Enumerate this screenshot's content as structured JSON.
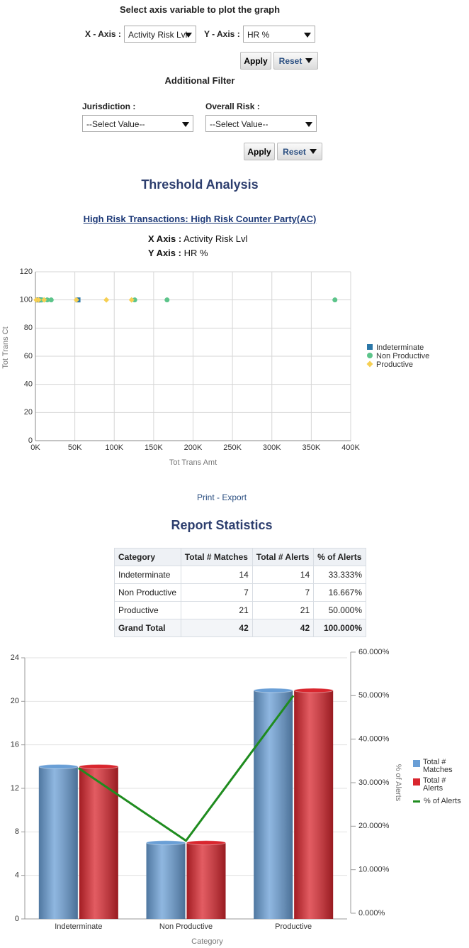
{
  "form": {
    "title": "Select axis variable to plot the graph",
    "x_axis_label": "X - Axis :",
    "x_axis_value": "Activity Risk Lvl",
    "y_axis_label": "Y - Axis :",
    "y_axis_value": "HR %",
    "apply": "Apply",
    "reset": "Reset",
    "filter_title": "Additional Filter",
    "jurisdiction_label": "Jurisdiction :",
    "jurisdiction_value": "--Select Value--",
    "overall_risk_label": "Overall Risk :",
    "overall_risk_value": "--Select Value--",
    "apply2": "Apply",
    "reset2": "Reset"
  },
  "section_title": "Threshold Analysis",
  "report_link": "High Risk Transactions: High Risk Counter Party(AC)",
  "axis_info": {
    "x_label": "X Axis :",
    "x_value": "Activity Risk Lvl",
    "y_label": "Y Axis :",
    "y_value": "HR %"
  },
  "links": [
    "Print",
    "- Export"
  ],
  "stats_title": "Report Statistics",
  "table": {
    "header": [
      "Category",
      "Total # Matches",
      "Total # Alerts",
      "% of Alerts"
    ],
    "rows": [
      [
        "Indeterminate",
        14,
        14,
        "33.333%"
      ],
      [
        "Non Productive",
        7,
        7,
        "16.667%"
      ],
      [
        "Productive",
        21,
        21,
        "50.000%"
      ],
      [
        "Grand Total",
        42,
        42,
        "100.000%"
      ]
    ]
  },
  "chart_data": [
    {
      "type": "scatter",
      "x_label": "Tot Trans Amt",
      "y_label": "Tot Trans Ct",
      "xlim": [
        0,
        400000
      ],
      "ylim": [
        0,
        120
      ],
      "xticks": [
        {
          "value": 0,
          "label": "0K"
        },
        {
          "value": 50000,
          "label": "50K"
        },
        {
          "value": 100000,
          "label": "100K"
        },
        {
          "value": 150000,
          "label": "150K"
        },
        {
          "value": 200000,
          "label": "200K"
        },
        {
          "value": 250000,
          "label": "250K"
        },
        {
          "value": 300000,
          "label": "300K"
        },
        {
          "value": 350000,
          "label": "350K"
        },
        {
          "value": 400000,
          "label": "400K"
        }
      ],
      "yticks": [
        0,
        20,
        40,
        60,
        80,
        100,
        120
      ],
      "grid": true,
      "series": [
        {
          "name": "Indeterminate",
          "color": "#2b77a8",
          "marker": "square",
          "x": [
            3000,
            6000,
            54000
          ],
          "values": [
            100,
            100,
            100
          ]
        },
        {
          "name": "Non Productive",
          "color": "#5cc48a",
          "marker": "circle",
          "x": [
            8000,
            15000,
            20000,
            126000,
            167000,
            380000
          ],
          "values": [
            100,
            100,
            100,
            100,
            100,
            100
          ]
        },
        {
          "name": "Productive",
          "color": "#f6cf52",
          "marker": "diamond",
          "x": [
            1000,
            4000,
            11000,
            52000,
            90000,
            122000
          ],
          "values": [
            100,
            100,
            100,
            100,
            100,
            100
          ]
        }
      ]
    },
    {
      "type": "bar",
      "x_label": "Category",
      "y2_label": "% of Alerts",
      "categories": [
        "Indeterminate",
        "Non Productive",
        "Productive"
      ],
      "ylim": [
        0,
        24
      ],
      "yticks": [
        0,
        4,
        8,
        12,
        16,
        20,
        24
      ],
      "y2lim": [
        0,
        60
      ],
      "y2ticks": [
        {
          "value": 0,
          "label": "0.000%"
        },
        {
          "value": 10,
          "label": "10.000%"
        },
        {
          "value": 20,
          "label": "20.000%"
        },
        {
          "value": 30,
          "label": "30.000%"
        },
        {
          "value": 40,
          "label": "40.000%"
        },
        {
          "value": 50,
          "label": "50.000%"
        },
        {
          "value": 60,
          "label": "60.000%"
        }
      ],
      "grid": true,
      "series": [
        {
          "name": "Total # Matches",
          "color": "#6a9fd6",
          "values": [
            14,
            7,
            21
          ]
        },
        {
          "name": "Total # Alerts",
          "color": "#d9262e",
          "values": [
            14,
            7,
            21
          ]
        },
        {
          "name": "% of Alerts",
          "color": "#1f8c1f",
          "axis": "y2",
          "values": [
            33.333,
            16.667,
            50
          ]
        }
      ]
    }
  ]
}
